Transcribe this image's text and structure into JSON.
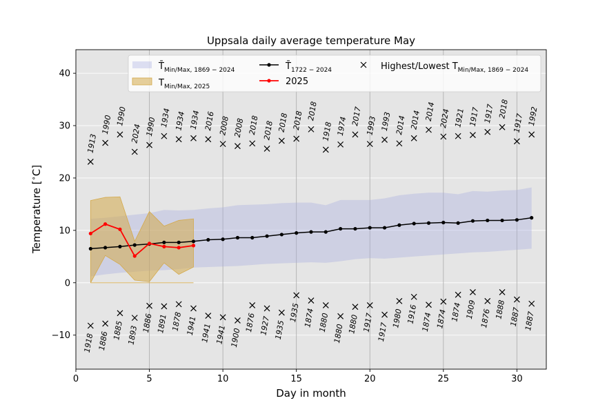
{
  "chart_data": {
    "type": "line",
    "title": "Uppsala daily average temperature May",
    "xlabel": "Day in month",
    "ylabel": "Temperature [$^\\circ$C]",
    "ylabel_parts": {
      "main": "Temperature [",
      "sup": "∘",
      "unit": "C]"
    },
    "xlim": [
      0,
      32
    ],
    "ylim": [
      -16.5,
      44.5
    ],
    "xticks": [
      0,
      5,
      10,
      15,
      20,
      25,
      30
    ],
    "yticks": [
      -10,
      0,
      10,
      20,
      30,
      40
    ],
    "grid": true,
    "legend_position": "top",
    "legend": [
      {
        "key": "band_all",
        "main": "T̄",
        "sub": "Min/Max, 1869 − 2024"
      },
      {
        "key": "band_2025",
        "main": "T",
        "sub": "Min/Max, 2025"
      },
      {
        "key": "mean",
        "main": "T̄",
        "sub": "1722 − 2024"
      },
      {
        "key": "current",
        "main": "2025",
        "sub": ""
      },
      {
        "key": "extremes",
        "main": "Highest/Lowest T",
        "sub": "Min/Max, 1869 − 2024"
      }
    ],
    "days": [
      1,
      2,
      3,
      4,
      5,
      6,
      7,
      8,
      9,
      10,
      11,
      12,
      13,
      14,
      15,
      16,
      17,
      18,
      19,
      20,
      21,
      22,
      23,
      24,
      25,
      26,
      27,
      28,
      29,
      30,
      31
    ],
    "mean_1722_2024": [
      6.5,
      6.7,
      6.9,
      7.2,
      7.4,
      7.7,
      7.7,
      7.9,
      8.2,
      8.3,
      8.6,
      8.6,
      8.9,
      9.2,
      9.5,
      9.7,
      9.7,
      10.3,
      10.3,
      10.5,
      10.5,
      11.0,
      11.3,
      11.4,
      11.5,
      11.4,
      11.8,
      11.9,
      11.9,
      12.0,
      12.4
    ],
    "series_2025": {
      "days": [
        1,
        2,
        3,
        4,
        5,
        6,
        7,
        8
      ],
      "values": [
        9.4,
        11.2,
        10.2,
        5.1,
        7.5,
        6.9,
        6.7,
        7.1
      ]
    },
    "band_1869_2024": {
      "upper": [
        12.2,
        12.4,
        12.7,
        13.0,
        13.3,
        13.9,
        13.8,
        13.9,
        14.2,
        14.4,
        14.8,
        14.9,
        15.0,
        15.2,
        15.3,
        15.3,
        14.8,
        15.8,
        15.8,
        15.8,
        16.1,
        16.7,
        17.0,
        17.2,
        17.2,
        16.9,
        17.5,
        17.4,
        17.6,
        17.7,
        18.2
      ],
      "lower": [
        1.2,
        1.6,
        1.9,
        2.1,
        2.3,
        2.4,
        2.6,
        2.9,
        3.0,
        3.1,
        3.2,
        3.4,
        3.6,
        3.7,
        3.8,
        3.9,
        3.8,
        4.1,
        4.5,
        4.7,
        4.6,
        4.8,
        5.0,
        5.2,
        5.4,
        5.6,
        5.8,
        5.9,
        6.1,
        6.3,
        6.5
      ]
    },
    "band_2025": {
      "days": [
        1,
        2,
        3,
        4,
        5,
        6,
        7,
        8
      ],
      "upper": [
        15.7,
        16.3,
        16.4,
        7.9,
        13.6,
        10.8,
        11.9,
        12.2
      ],
      "lower": [
        0.0,
        5.2,
        3.5,
        0.5,
        0.2,
        3.8,
        1.6,
        3.0
      ],
      "floor": 0.0
    },
    "record_highs": [
      {
        "day": 1,
        "value": 23.1,
        "year": "1913"
      },
      {
        "day": 2,
        "value": 26.7,
        "year": "1990"
      },
      {
        "day": 3,
        "value": 28.3,
        "year": "1990"
      },
      {
        "day": 4,
        "value": 25.0,
        "year": "2024"
      },
      {
        "day": 5,
        "value": 26.3,
        "year": "1990"
      },
      {
        "day": 6,
        "value": 28.0,
        "year": "1934"
      },
      {
        "day": 7,
        "value": 27.4,
        "year": "1934"
      },
      {
        "day": 8,
        "value": 27.6,
        "year": "1934"
      },
      {
        "day": 9,
        "value": 27.4,
        "year": "2016"
      },
      {
        "day": 10,
        "value": 26.5,
        "year": "2008"
      },
      {
        "day": 11,
        "value": 26.1,
        "year": "2008"
      },
      {
        "day": 12,
        "value": 26.6,
        "year": "2018"
      },
      {
        "day": 13,
        "value": 25.6,
        "year": "2018"
      },
      {
        "day": 14,
        "value": 27.1,
        "year": "2018"
      },
      {
        "day": 15,
        "value": 27.5,
        "year": "2018"
      },
      {
        "day": 16,
        "value": 29.3,
        "year": "2018"
      },
      {
        "day": 17,
        "value": 25.4,
        "year": "1918"
      },
      {
        "day": 18,
        "value": 26.4,
        "year": "1974"
      },
      {
        "day": 19,
        "value": 28.3,
        "year": "2017"
      },
      {
        "day": 20,
        "value": 26.5,
        "year": "1993"
      },
      {
        "day": 21,
        "value": 27.3,
        "year": "1993"
      },
      {
        "day": 22,
        "value": 26.6,
        "year": "2014"
      },
      {
        "day": 23,
        "value": 27.6,
        "year": "2014"
      },
      {
        "day": 24,
        "value": 29.2,
        "year": "2014"
      },
      {
        "day": 25,
        "value": 27.9,
        "year": "2024"
      },
      {
        "day": 26,
        "value": 28.0,
        "year": "1921"
      },
      {
        "day": 27,
        "value": 28.2,
        "year": "1917"
      },
      {
        "day": 28,
        "value": 28.8,
        "year": "1917"
      },
      {
        "day": 29,
        "value": 29.7,
        "year": "2018"
      },
      {
        "day": 30,
        "value": 27.0,
        "year": "1917"
      },
      {
        "day": 31,
        "value": 28.3,
        "year": "1992"
      }
    ],
    "record_lows": [
      {
        "day": 1,
        "value": -8.2,
        "year": "1918"
      },
      {
        "day": 2,
        "value": -7.8,
        "year": "1886"
      },
      {
        "day": 3,
        "value": -5.8,
        "year": "1885"
      },
      {
        "day": 4,
        "value": -6.7,
        "year": "1893"
      },
      {
        "day": 5,
        "value": -4.4,
        "year": "1886"
      },
      {
        "day": 6,
        "value": -4.5,
        "year": "1891"
      },
      {
        "day": 7,
        "value": -4.1,
        "year": "1878"
      },
      {
        "day": 8,
        "value": -4.9,
        "year": "1941"
      },
      {
        "day": 9,
        "value": -6.3,
        "year": "1941"
      },
      {
        "day": 10,
        "value": -6.6,
        "year": "1941"
      },
      {
        "day": 11,
        "value": -7.2,
        "year": "1900"
      },
      {
        "day": 12,
        "value": -4.3,
        "year": "1876"
      },
      {
        "day": 13,
        "value": -4.9,
        "year": "1927"
      },
      {
        "day": 14,
        "value": -5.7,
        "year": "1935"
      },
      {
        "day": 15,
        "value": -2.4,
        "year": "1935"
      },
      {
        "day": 16,
        "value": -3.4,
        "year": "1874"
      },
      {
        "day": 17,
        "value": -4.3,
        "year": "1880"
      },
      {
        "day": 18,
        "value": -6.4,
        "year": "1880"
      },
      {
        "day": 19,
        "value": -4.6,
        "year": "1880"
      },
      {
        "day": 20,
        "value": -4.3,
        "year": "1917"
      },
      {
        "day": 21,
        "value": -6.1,
        "year": "1917"
      },
      {
        "day": 22,
        "value": -3.5,
        "year": "1980"
      },
      {
        "day": 23,
        "value": -2.7,
        "year": "1916"
      },
      {
        "day": 24,
        "value": -4.2,
        "year": "1874"
      },
      {
        "day": 25,
        "value": -3.6,
        "year": "1874"
      },
      {
        "day": 26,
        "value": -2.3,
        "year": "1874"
      },
      {
        "day": 27,
        "value": -1.8,
        "year": "1909"
      },
      {
        "day": 28,
        "value": -3.5,
        "year": "1876"
      },
      {
        "day": 29,
        "value": -1.8,
        "year": "1888"
      },
      {
        "day": 30,
        "value": -3.2,
        "year": "1887"
      },
      {
        "day": 31,
        "value": -4.0,
        "year": "1887"
      }
    ],
    "colors": {
      "background": "#e5e5e5",
      "band_all": "#a3a8e0",
      "band_2025": "#d4a94a",
      "mean_line": "#000000",
      "current_line": "#ff0000",
      "grid_major": "#ffffff",
      "grid_minor": "#b0b0b0"
    }
  }
}
